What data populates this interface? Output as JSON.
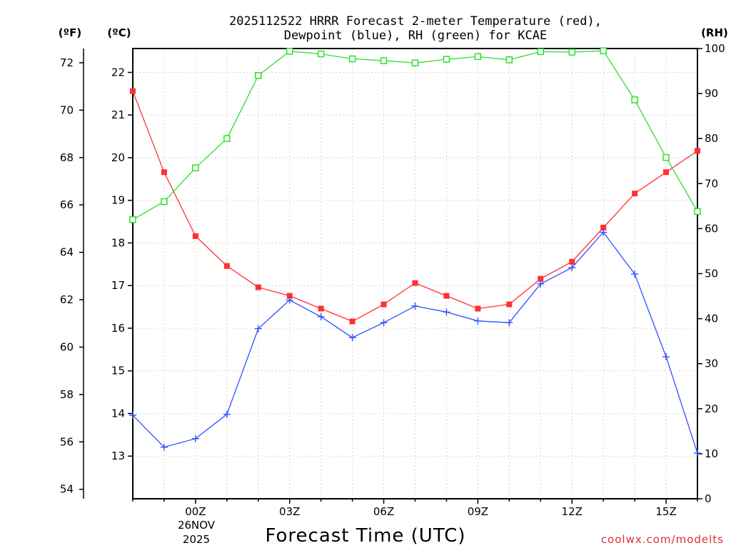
{
  "chart_data": {
    "type": "line",
    "title_lines": [
      "2025112522 HRRR Forecast 2-meter Temperature (red),",
      "Dewpoint (blue), RH (green) for KCAE"
    ],
    "xlabel": "Forecast Time (UTC)",
    "x_ticks": [
      "00Z",
      "03Z",
      "06Z",
      "09Z",
      "12Z",
      "15Z"
    ],
    "x_tick_hours": [
      2,
      5,
      8,
      11,
      14,
      17
    ],
    "date_label": [
      "26NOV",
      "2025"
    ],
    "x": [
      0,
      1,
      2,
      3,
      4,
      5,
      6,
      7,
      8,
      9,
      10,
      11,
      12,
      13,
      14,
      15,
      16,
      17,
      18
    ],
    "xlim": [
      0,
      18
    ],
    "left_axis_f": {
      "label": "(ºF)",
      "ticks": [
        54,
        56,
        58,
        60,
        62,
        64,
        66,
        68,
        70,
        72
      ],
      "ylim": [
        53.6,
        72.6
      ]
    },
    "left_axis_c": {
      "label": "(ºC)",
      "ticks": [
        13,
        14,
        15,
        16,
        17,
        18,
        19,
        20,
        21,
        22
      ],
      "ylim": [
        12,
        22.56
      ]
    },
    "right_axis": {
      "label": "(RH)",
      "ticks": [
        0,
        10,
        20,
        30,
        40,
        50,
        60,
        70,
        80,
        90,
        100
      ],
      "ylim": [
        0,
        100
      ]
    },
    "series": [
      {
        "name": "Temperature",
        "axis": "celsius",
        "color": "#ff3030",
        "marker": "filled-square",
        "values": [
          21.56,
          19.66,
          18.16,
          17.46,
          16.96,
          16.76,
          16.46,
          16.16,
          16.56,
          17.06,
          16.76,
          16.46,
          16.56,
          17.16,
          17.56,
          18.36,
          19.16,
          19.66,
          20.16
        ]
      },
      {
        "name": "Dewpoint",
        "axis": "celsius",
        "color": "#3050ff",
        "marker": "plus",
        "values": [
          13.96,
          13.21,
          13.41,
          13.98,
          15.99,
          16.66,
          16.27,
          15.78,
          16.13,
          16.52,
          16.38,
          16.17,
          16.13,
          17.04,
          17.42,
          18.25,
          17.27,
          15.33,
          13.07
        ]
      },
      {
        "name": "RH",
        "axis": "rh",
        "color": "#30dd30",
        "marker": "open-square",
        "values": [
          62,
          66,
          73.5,
          80,
          94,
          99.4,
          98.8,
          97.7,
          97.3,
          96.8,
          97.6,
          98.2,
          97.5,
          99.3,
          99.2,
          99.5,
          88.6,
          75.8,
          63.8
        ]
      }
    ],
    "grid": true,
    "credit": "coolwx.com/modelts"
  }
}
